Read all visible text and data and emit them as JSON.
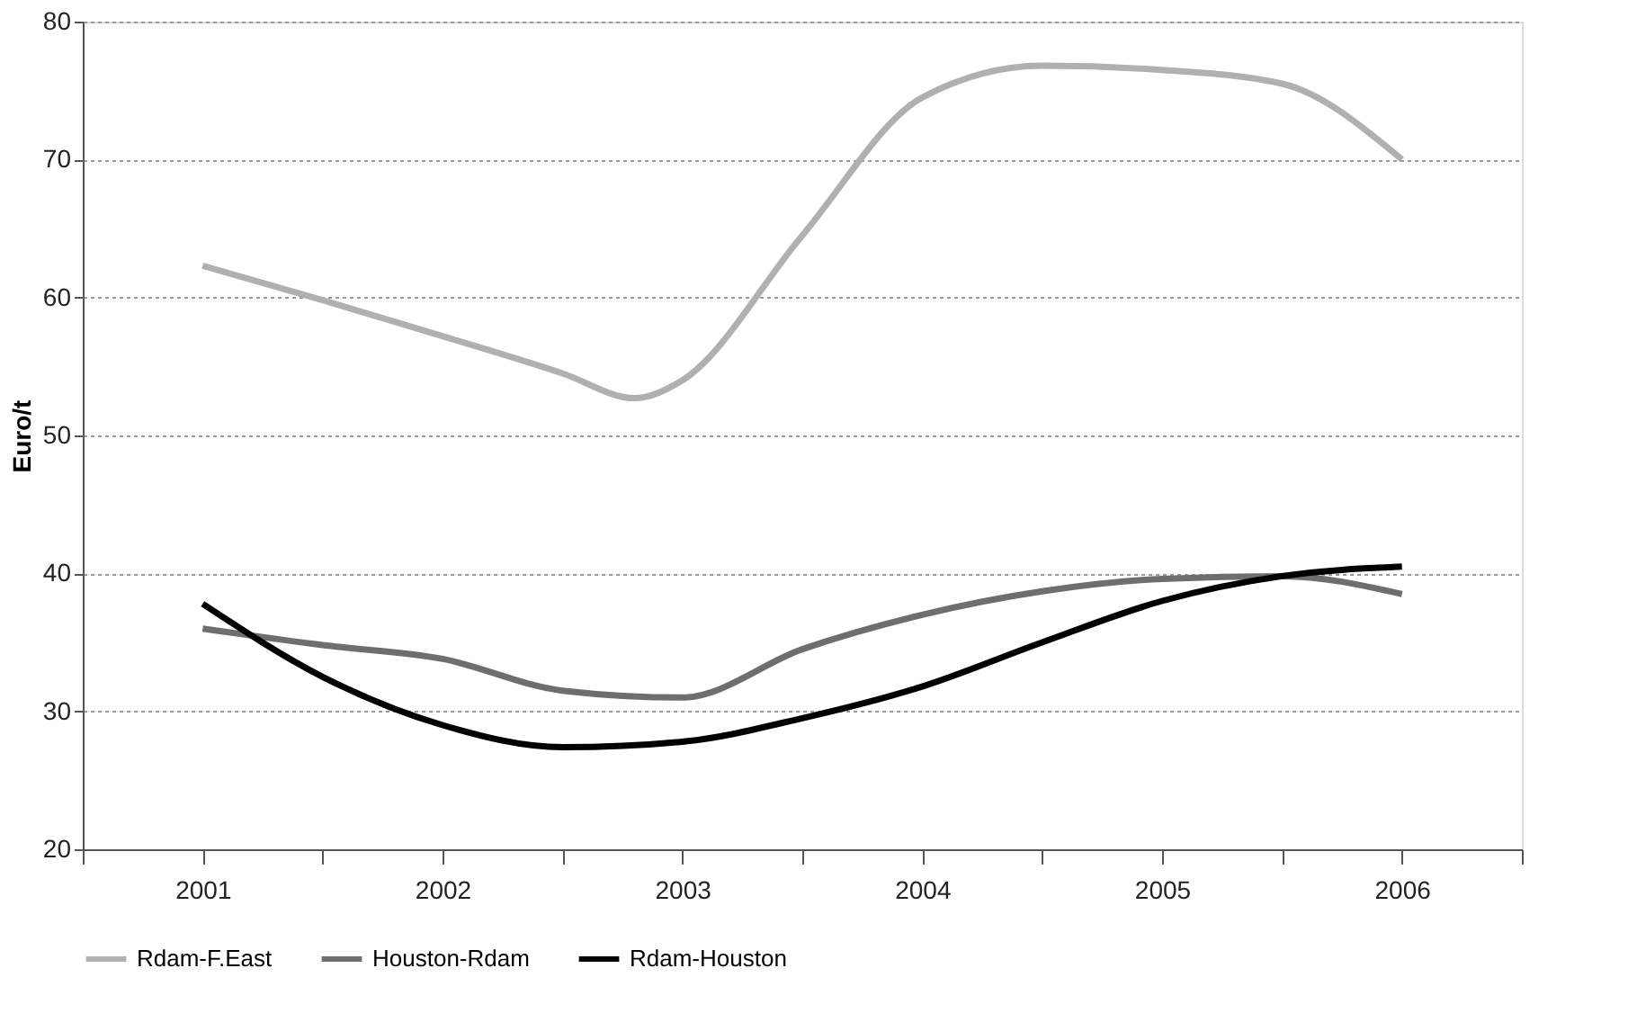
{
  "chart_data": {
    "type": "line",
    "ylabel": "Euro/t",
    "xlim": [
      2000.5,
      2006.5
    ],
    "ylim": [
      20,
      80
    ],
    "yticks": [
      20,
      30,
      40,
      50,
      60,
      70,
      80
    ],
    "xticks": [
      {
        "value": 2000.5,
        "label": null
      },
      2001,
      {
        "value": 2001.5,
        "label": null
      },
      2002,
      {
        "value": 2002.5,
        "label": null
      },
      2003,
      {
        "value": 2003.5,
        "label": null
      },
      2004,
      {
        "value": 2004.5,
        "label": null
      },
      2005,
      {
        "value": 2005.5,
        "label": null
      },
      2006,
      {
        "value": 2006.5,
        "label": null
      }
    ],
    "grid": "y",
    "legend": "bottom",
    "marker": "none",
    "line_style": "solid",
    "series": [
      {
        "name": "Rdam-F.East",
        "color": "#b0b0b0",
        "x": [
          2001,
          2001.5,
          2002,
          2002.5,
          2002.8,
          2003,
          2003.5,
          2004,
          2004.5,
          2005,
          2005.5,
          2006
        ],
        "values": [
          62.3,
          59.8,
          57.2,
          54.5,
          52.7,
          54,
          64.5,
          74.5,
          76.8,
          76.5,
          75.5,
          70
        ]
      },
      {
        "name": "Houston-Rdam",
        "color": "#6e6e6e",
        "x": [
          2001,
          2001.5,
          2002,
          2002.5,
          2003,
          2003.5,
          2004,
          2004.5,
          2005,
          2005.5,
          2006
        ],
        "values": [
          36,
          34.8,
          33.8,
          31.5,
          31,
          34.5,
          37,
          38.7,
          39.6,
          39.8,
          38.5
        ]
      },
      {
        "name": "Rdam-Houston",
        "color": "#000000",
        "x": [
          2001,
          2001.5,
          2002,
          2002.5,
          2003,
          2003.5,
          2004,
          2004.5,
          2005,
          2005.5,
          2006
        ],
        "values": [
          37.8,
          32.5,
          29,
          27.4,
          27.8,
          29.5,
          31.8,
          35,
          38,
          39.8,
          40.5
        ]
      }
    ]
  }
}
